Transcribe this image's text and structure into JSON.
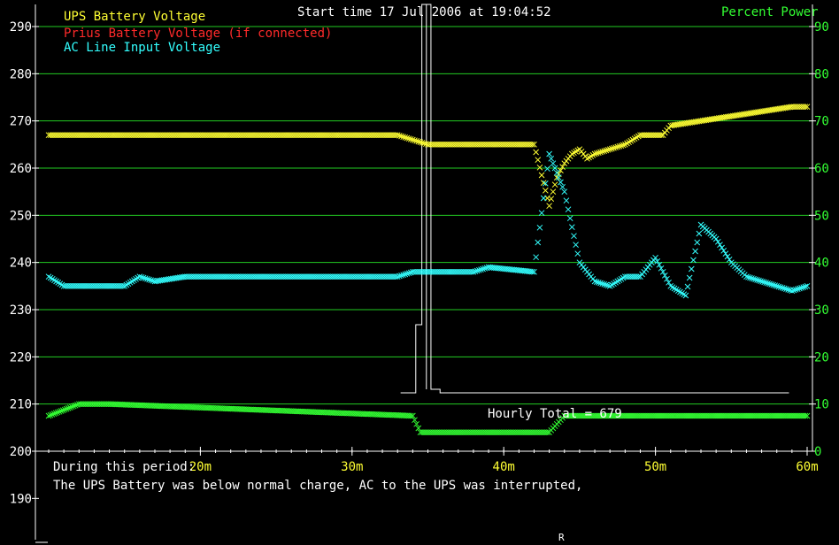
{
  "chart_data": {
    "type": "scatter",
    "title": "Start time 17 Jul 2006 at 19:04:52",
    "legend": {
      "placement": "top-left",
      "entries": [
        "UPS Battery Voltage",
        "Prius Battery Voltage (if connected)",
        "AC Line Input Voltage"
      ]
    },
    "y_right_label": "Percent Power",
    "y_left": {
      "min": 190,
      "max": 290,
      "ticks": [
        190,
        200,
        210,
        220,
        230,
        240,
        250,
        260,
        270,
        280,
        290
      ]
    },
    "y_right": {
      "min": 0,
      "max": 90,
      "ticks": [
        0,
        10,
        20,
        30,
        40,
        50,
        60,
        70,
        80,
        90
      ]
    },
    "x": {
      "min": 10,
      "max": 60,
      "ticks": [
        "20m",
        "30m",
        "40m",
        "50m",
        "60m"
      ],
      "tick_values": [
        20,
        30,
        40,
        50,
        60
      ]
    },
    "grid": true,
    "colors": {
      "ups": "#ffff33",
      "prius": "#ff2a2a",
      "ac": "#33ffff",
      "power": "#33ff33",
      "grid": "#22cc22",
      "hourly": "#ffffff"
    },
    "series": [
      {
        "name": "UPS Battery Voltage",
        "points": [
          [
            10,
            267
          ],
          [
            33,
            267
          ],
          [
            34,
            266
          ],
          [
            35,
            265
          ],
          [
            42,
            265
          ],
          [
            43,
            252
          ],
          [
            43.5,
            258
          ],
          [
            44,
            261
          ],
          [
            44.5,
            263
          ],
          [
            45,
            264
          ],
          [
            45.5,
            262
          ],
          [
            46,
            263
          ],
          [
            47,
            264
          ],
          [
            48,
            265
          ],
          [
            49,
            267
          ],
          [
            50.5,
            267
          ],
          [
            51,
            269
          ],
          [
            53,
            270
          ],
          [
            55,
            271
          ],
          [
            57,
            272
          ],
          [
            59,
            273
          ],
          [
            60,
            273
          ]
        ]
      },
      {
        "name": "Prius Battery Voltage (if connected)",
        "points": []
      },
      {
        "name": "AC Line Input Voltage",
        "points": [
          [
            10,
            237
          ],
          [
            11,
            235
          ],
          [
            15,
            235
          ],
          [
            16,
            237
          ],
          [
            17,
            236
          ],
          [
            19,
            237
          ],
          [
            24,
            237
          ],
          [
            29,
            237
          ],
          [
            33,
            237
          ],
          [
            34,
            238
          ],
          [
            38,
            238
          ],
          [
            39,
            239
          ],
          [
            42,
            238
          ],
          [
            43,
            263
          ],
          [
            44,
            255
          ],
          [
            45,
            240
          ],
          [
            46,
            236
          ],
          [
            47,
            235
          ],
          [
            48,
            237
          ],
          [
            49,
            237
          ],
          [
            50,
            241
          ],
          [
            51,
            235
          ],
          [
            52,
            233
          ],
          [
            53,
            248
          ],
          [
            54,
            245
          ],
          [
            55,
            240
          ],
          [
            56,
            237
          ],
          [
            58,
            235
          ],
          [
            59,
            234
          ],
          [
            60,
            235
          ]
        ]
      },
      {
        "name": "Percent Power",
        "axis": "right",
        "points": [
          [
            10,
            7.5
          ],
          [
            12,
            10
          ],
          [
            14,
            10
          ],
          [
            34,
            7.5
          ],
          [
            34.5,
            4
          ],
          [
            43,
            4
          ],
          [
            44,
            7.5
          ],
          [
            60,
            7.5
          ]
        ]
      }
    ],
    "hourly_total": {
      "label": "Hourly Total = 679",
      "value": 679
    }
  },
  "footer": {
    "period_label": "During this period:",
    "message": "The UPS Battery was below normal charge, AC to the UPS was interrupted,",
    "corner_letter": "R"
  }
}
